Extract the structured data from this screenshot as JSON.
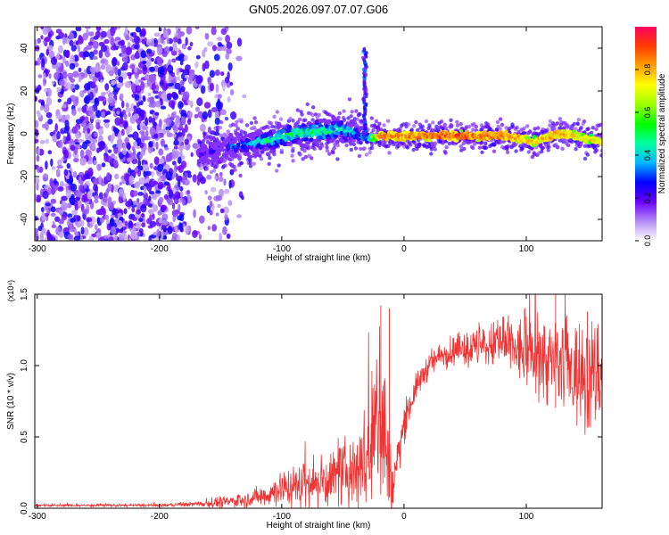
{
  "figure": {
    "title": "GN05.2026.097.07.07.G06"
  },
  "colorbar": {
    "label": "Normalized spectral amplitude",
    "ticks": [
      "0.0",
      "0.2",
      "0.4",
      "0.6",
      "0.8"
    ],
    "range": [
      0,
      1
    ],
    "colormap": [
      "#ffffff",
      "#b38cf5",
      "#6a00ff",
      "#0000ff",
      "#00b7ff",
      "#00ffa0",
      "#00ff00",
      "#9cff00",
      "#ffff00",
      "#ffa000",
      "#ff3c00",
      "#ff0060"
    ]
  },
  "chart_data": [
    {
      "type": "heatmap",
      "xlabel": "Height of straight line (km)",
      "ylabel": "Frequency (Hz)",
      "xlim": [
        -302,
        162
      ],
      "ylim": [
        -50,
        50
      ],
      "xticks": [
        "-300",
        "-200",
        "-100",
        "0",
        "100"
      ],
      "xtick_values": [
        -300,
        -200,
        -100,
        0,
        100
      ],
      "yticks": [
        "40",
        "20",
        "0",
        "-20",
        "-40"
      ],
      "ytick_values": [
        40,
        20,
        0,
        -20,
        -40
      ],
      "noise_region_km": [
        -302,
        -140
      ],
      "signal_track": {
        "x": [
          -168,
          -150,
          -130,
          -110,
          -90,
          -70,
          -50,
          -35,
          -30,
          -20,
          0,
          20,
          40,
          60,
          80,
          95,
          105,
          115,
          125,
          140,
          162
        ],
        "frequency_hz": [
          -10,
          -7,
          -5,
          -3,
          0,
          1,
          2,
          -1,
          -2,
          -1,
          -1,
          -1,
          -1,
          -1,
          -1,
          -2,
          -4,
          -2,
          0,
          -1,
          -4
        ],
        "amplitude": [
          0.3,
          0.35,
          0.45,
          0.55,
          0.6,
          0.6,
          0.55,
          0.4,
          0.45,
          0.95,
          0.95,
          0.97,
          0.98,
          0.96,
          0.95,
          0.9,
          0.85,
          0.9,
          0.9,
          0.85,
          0.8
        ]
      },
      "spike": {
        "x": -32,
        "frequency_range_hz": [
          0,
          40
        ]
      }
    },
    {
      "type": "line",
      "xlabel": "Height of straight line (km)",
      "ylabel": "SNR (10 * v/v)",
      "y_multiplier": "(x10⁴)",
      "xlim": [
        -302,
        162
      ],
      "ylim": [
        0,
        1.5
      ],
      "xticks": [
        "-300",
        "-200",
        "-100",
        "0",
        "100"
      ],
      "xtick_values": [
        -300,
        -200,
        -100,
        0,
        100
      ],
      "yticks": [
        "0.0",
        "0.5",
        "1.0",
        "1.5"
      ],
      "ytick_values": [
        0,
        0.5,
        1.0,
        1.5
      ],
      "color": "#f03232",
      "series": [
        {
          "x": [
            -302,
            -250,
            -200,
            -170,
            -150,
            -130,
            -110,
            -100,
            -90,
            -80,
            -70,
            -60,
            -50,
            -40,
            -35,
            -30,
            -25,
            -20,
            -15,
            -10,
            -5,
            0,
            10,
            20,
            30,
            40,
            60,
            80,
            100,
            120,
            140,
            150,
            162
          ],
          "y": [
            0.02,
            0.02,
            0.02,
            0.03,
            0.04,
            0.06,
            0.1,
            0.14,
            0.15,
            0.17,
            0.18,
            0.2,
            0.24,
            0.28,
            0.32,
            0.35,
            0.45,
            0.8,
            0.45,
            0.12,
            0.35,
            0.6,
            0.85,
            1.0,
            1.07,
            1.1,
            1.12,
            1.15,
            1.08,
            1.02,
            0.95,
            0.9,
            0.98
          ],
          "noise": [
            0.005,
            0.005,
            0.006,
            0.01,
            0.02,
            0.03,
            0.05,
            0.07,
            0.08,
            0.09,
            0.1,
            0.11,
            0.12,
            0.15,
            0.2,
            0.25,
            0.3,
            0.45,
            0.35,
            0.1,
            0.1,
            0.07,
            0.05,
            0.05,
            0.05,
            0.06,
            0.08,
            0.1,
            0.14,
            0.18,
            0.2,
            0.22,
            0.22
          ],
          "peak_spikes": [
            {
              "x": -19,
              "y": 1.42
            },
            {
              "x": -12,
              "y": 1.4
            },
            {
              "x": 124,
              "y": 1.55
            },
            {
              "x": 150,
              "y": 1.38
            }
          ]
        }
      ]
    }
  ]
}
